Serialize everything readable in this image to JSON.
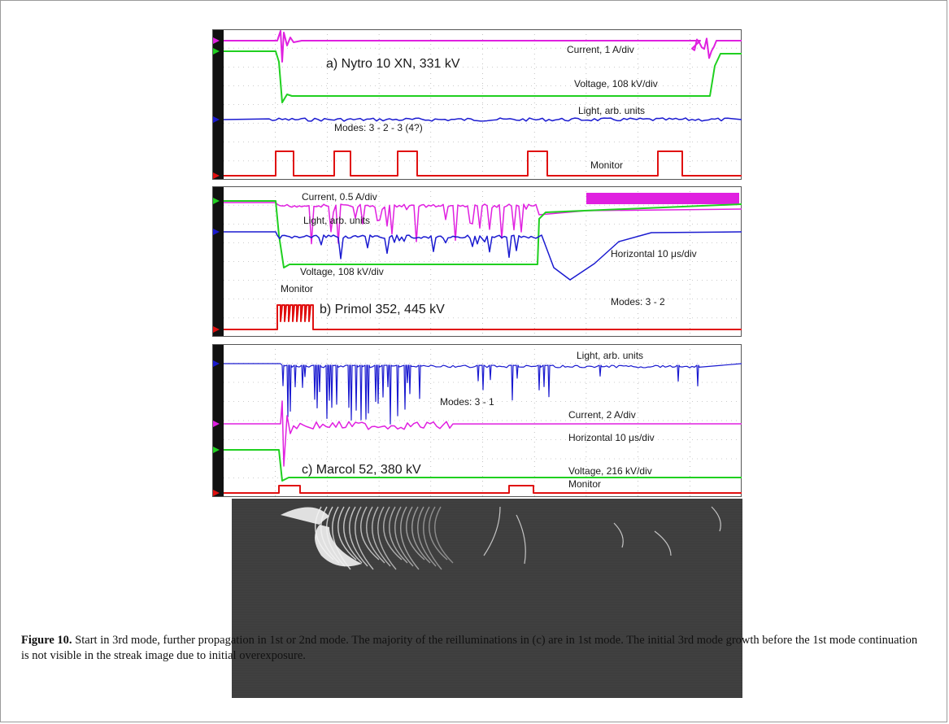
{
  "figure": {
    "number_label": "Figure 10.",
    "caption": "Start in 3rd mode, further propagation in 1st or 2nd mode. The majority of the reilluminations in (c) are in 1st mode. The initial 3rd mode growth before the 1st mode continuation is not visible in the streak image due to initial overexposure."
  },
  "panels": {
    "a": {
      "title": "a) Nytro 10 XN, 331 kV",
      "modes": "Modes: 3 - 2 - 3 (4?)",
      "traces": {
        "current": "Current, 1 A/div",
        "voltage": "Voltage, 108 kV/div",
        "light": "Light, arb. units",
        "monitor": "Monitor"
      }
    },
    "b": {
      "title": "b) Primol 352, 445 kV",
      "modes": "Modes: 3 - 2",
      "traces": {
        "current": "Current, 0.5 A/div",
        "light": "Light, arb. units",
        "voltage": "Voltage, 108 kV/div",
        "horizontal": "Horizontal 10 μs/div",
        "monitor": "Monitor"
      }
    },
    "c": {
      "title": "c) Marcol 52, 380 kV",
      "modes": "Modes: 3 - 1",
      "traces": {
        "light": "Light, arb. units",
        "current": "Current, 2 A/div",
        "horizontal": "Horizontal 10 μs/div",
        "voltage": "Voltage, 216 kV/div",
        "monitor": "Monitor"
      }
    }
  },
  "colors": {
    "current": "#e020e0",
    "voltage": "#20d020",
    "light": "#1a1ad0",
    "monitor": "#e01010",
    "streak_bg": "#3d3d3d",
    "streak_glow": "#f2f2f2"
  }
}
